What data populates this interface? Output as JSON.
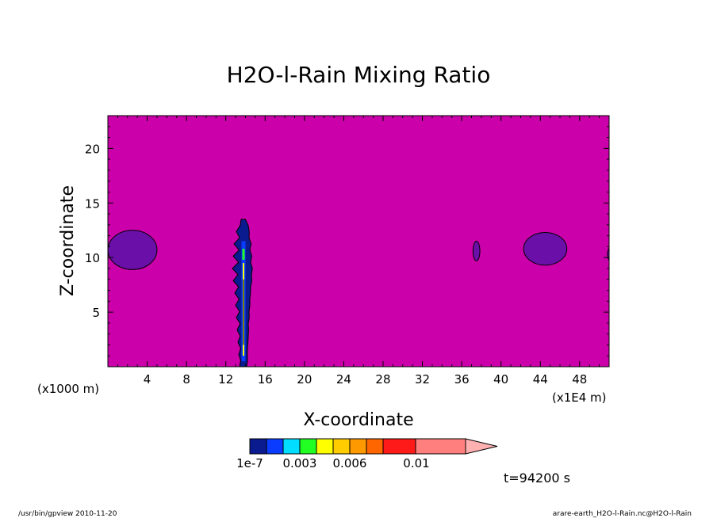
{
  "chart_data": {
    "type": "heatmap",
    "title": "H2O-l-Rain Mixing Ratio",
    "xlabel": "X-coordinate",
    "ylabel": "Z-coordinate",
    "xlim": [
      0,
      51
    ],
    "ylim": [
      0,
      23
    ],
    "x_ticks": [
      4,
      8,
      12,
      16,
      20,
      24,
      28,
      32,
      36,
      40,
      44,
      48
    ],
    "y_ticks": [
      5,
      10,
      15,
      20
    ],
    "x_tick_labels": [
      "4",
      "8",
      "12",
      "16",
      "20",
      "24",
      "28",
      "32",
      "36",
      "40",
      "44",
      "48"
    ],
    "y_tick_labels": [
      "5",
      "10",
      "15",
      "20"
    ],
    "x_unit_left": "(x1000 m)",
    "x_unit_right": "(x1E4 m)",
    "background_color": "#cc00aa",
    "grid": false,
    "colorbar": {
      "colors": [
        "#0a1a8f",
        "#0a3cff",
        "#00ddff",
        "#22ff22",
        "#ffff00",
        "#ffcc00",
        "#ff9900",
        "#ff6600",
        "#ff1a1a",
        "#ff7f7f",
        "#ffb0b0"
      ],
      "labels": [
        "1e-7",
        "0.003",
        "0.006",
        "0.01"
      ]
    },
    "features": [
      {
        "name": "plume",
        "x_center": 13.8,
        "z_top": 13.5,
        "z_bottom": 0,
        "level": "1e-7 to 0.003+"
      },
      {
        "name": "blob-left",
        "x_center": 2.5,
        "z_center": 10.7,
        "x_half": 2.5,
        "z_half": 1.8
      },
      {
        "name": "blob-small",
        "x_center": 37.5,
        "z_center": 10.6,
        "x_half": 0.35,
        "z_half": 0.9
      },
      {
        "name": "blob-right",
        "x_center": 44.5,
        "z_center": 10.8,
        "x_half": 2.2,
        "z_half": 1.5
      }
    ]
  },
  "annotations": {
    "time": "t=94200 s",
    "footer_left": "/usr/bin/gpview   2010-11-20",
    "footer_right": "arare-earth_H2O-l-Rain.nc@H2O-l-Rain"
  }
}
